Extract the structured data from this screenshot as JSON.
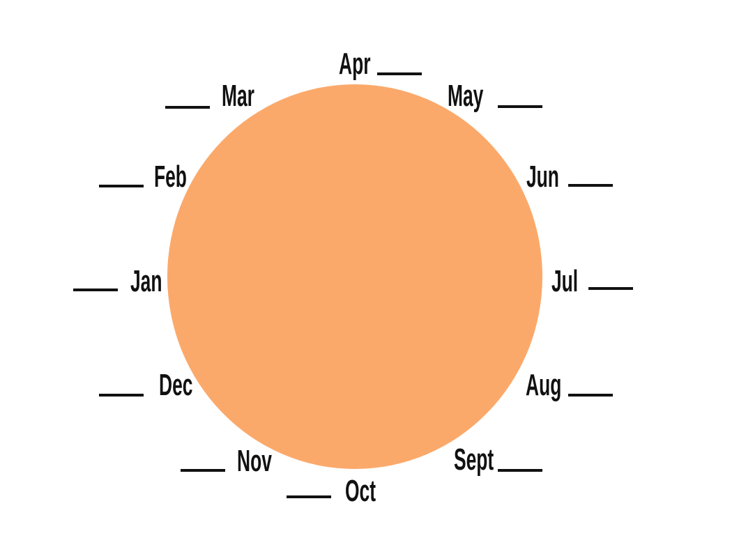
{
  "colors": {
    "circle_fill": "#FBA96B",
    "ink": "#111111",
    "background": "#FFFFFF"
  },
  "months": [
    {
      "id": "jan",
      "label": "Jan"
    },
    {
      "id": "feb",
      "label": "Feb"
    },
    {
      "id": "mar",
      "label": "Mar"
    },
    {
      "id": "apr",
      "label": "Apr"
    },
    {
      "id": "may",
      "label": "May"
    },
    {
      "id": "jun",
      "label": "Jun"
    },
    {
      "id": "jul",
      "label": "Jul"
    },
    {
      "id": "aug",
      "label": "Aug"
    },
    {
      "id": "sept",
      "label": "Sept"
    },
    {
      "id": "oct",
      "label": "Oct"
    },
    {
      "id": "nov",
      "label": "Nov"
    },
    {
      "id": "dec",
      "label": "Dec"
    }
  ]
}
